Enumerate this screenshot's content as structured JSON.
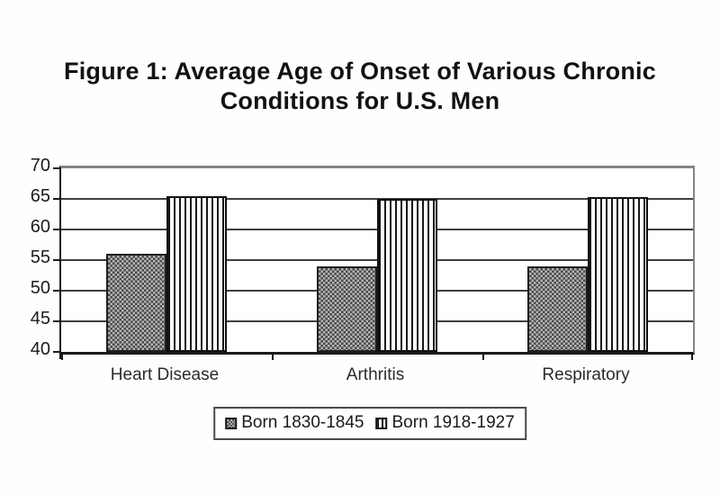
{
  "chart_data": {
    "type": "bar",
    "title": "Figure 1: Average Age of Onset of Various Chronic Conditions for U.S. Men",
    "title_lines": [
      "Figure 1: Average Age of Onset of Various Chronic",
      "Conditions for U.S. Men"
    ],
    "categories": [
      "Heart Disease",
      "Arthritis",
      "Respiratory"
    ],
    "series": [
      {
        "name": "Born 1830-1845",
        "pattern": "checker",
        "values": [
          56,
          54,
          54
        ]
      },
      {
        "name": "Born 1918-1927",
        "pattern": "vertical-stripes",
        "values": [
          65.5,
          65,
          65.3
        ]
      }
    ],
    "ylim": [
      40,
      70
    ],
    "yticks": [
      40,
      45,
      50,
      55,
      60,
      65,
      70
    ],
    "xlabel": "",
    "ylabel": "",
    "grid": true,
    "legend_position": "bottom",
    "colors": {
      "checker_dark": "#4a4a4a",
      "checker_light": "#b4b4b4",
      "stripe": "#161616",
      "gridline": "#3f3f3f",
      "axis": "#1a1a1a",
      "plot_border": "#858585",
      "text": "#121212",
      "background": "#ffffff"
    }
  }
}
